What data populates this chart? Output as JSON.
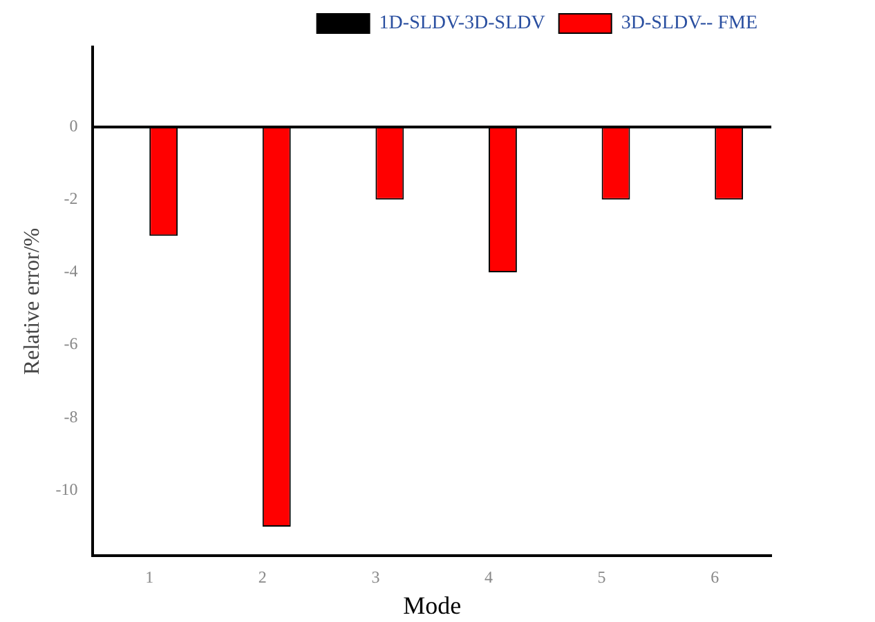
{
  "chart_data": {
    "type": "bar",
    "xlabel": "Mode",
    "ylabel": "Relative error/%",
    "categories": [
      "1",
      "2",
      "3",
      "4",
      "5",
      "6"
    ],
    "series": [
      {
        "name": "1D-SLDV-3D-SLDV",
        "color": "#000000",
        "values": [
          null,
          null,
          null,
          null,
          null,
          null
        ]
      },
      {
        "name": "3D-SLDV-- FME",
        "color": "#ff0000",
        "values": [
          -3,
          -11,
          -2,
          -4,
          -2,
          -2
        ]
      }
    ],
    "ylim": [
      -11.8,
      2.2
    ],
    "yticks": [
      0,
      -2,
      -4,
      -6,
      -8,
      -10
    ],
    "grid": false,
    "ref_lines": [
      {
        "axis": "y",
        "value": 0,
        "color": "#000000"
      }
    ],
    "legend": "top right"
  }
}
